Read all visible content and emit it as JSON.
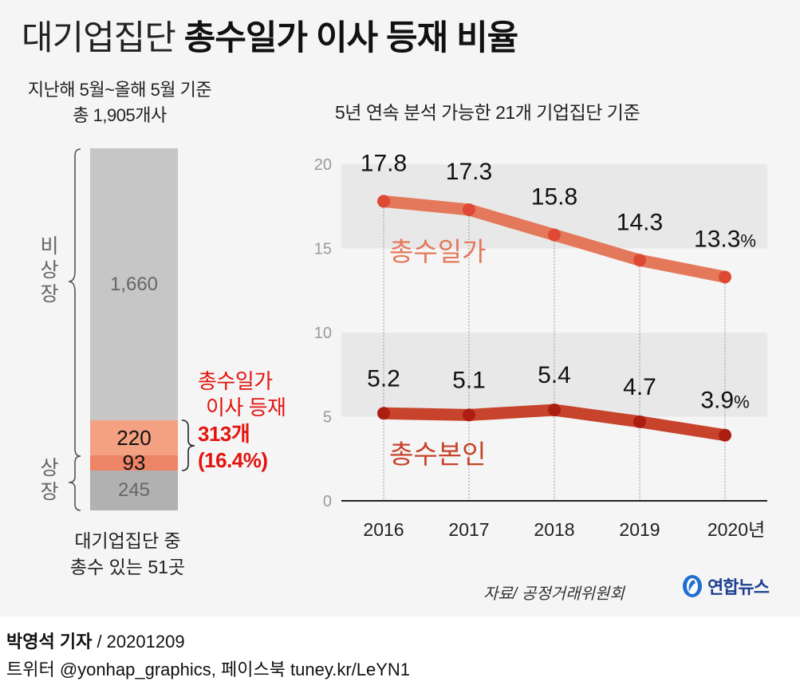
{
  "header": {
    "title_light": "대기업집단",
    "title_bold": "총수일가 이사 등재 비율"
  },
  "left_panel": {
    "subtitle_line1": "지난해 5월~올해 5월 기준",
    "subtitle_line2": "총 1,905개사",
    "group_labels": {
      "non_listed": [
        "비",
        "상",
        "장"
      ],
      "listed": [
        "상",
        "장"
      ]
    },
    "stacked_bar": {
      "segments": [
        {
          "name": "non-listed-other",
          "value": "1,660",
          "color": "#c6c6c6"
        },
        {
          "name": "non-listed-family-director",
          "value": "220",
          "color": "#f3a182"
        },
        {
          "name": "listed-family-director",
          "value": "93",
          "color": "#ee8466"
        },
        {
          "name": "listed-other",
          "value": "245",
          "color": "#b2b1b2"
        }
      ]
    },
    "annotation": {
      "line1": "총수일가",
      "line2": "이사 등재",
      "count": "313개",
      "percent": "(16.4%)",
      "color": "#e3140f"
    },
    "footer_line1": "대기업집단 중",
    "footer_line2": "총수 있는 51곳"
  },
  "right_panel": {
    "subtitle": "5년 연속 분석 가능한 21개 기업집단 기준"
  },
  "chart_data": {
    "type": "line",
    "title": "대기업집단 총수일가 이사 등재 비율",
    "subtitle": "5년 연속 분석 가능한 21개 기업집단 기준",
    "xlabel": "",
    "ylabel": "",
    "x": [
      "2016",
      "2017",
      "2018",
      "2019",
      "2020년"
    ],
    "ylim": [
      0,
      20
    ],
    "yticks": [
      "0",
      "5",
      "10",
      "15",
      "20"
    ],
    "shaded_bands": [
      [
        5,
        10
      ],
      [
        15,
        20
      ]
    ],
    "unit_suffix": "%",
    "series": [
      {
        "name": "총수일가",
        "values": [
          17.8,
          17.3,
          15.8,
          14.3,
          13.3
        ],
        "labels": [
          "17.8",
          "17.3",
          "15.8",
          "14.3",
          "13.3"
        ],
        "line_color": "#e4785a",
        "dot_color": "#dc4430",
        "label_color": "#e4785a"
      },
      {
        "name": "총수본인",
        "values": [
          5.2,
          5.1,
          5.4,
          4.7,
          3.9
        ],
        "labels": [
          "5.2",
          "5.1",
          "5.4",
          "4.7",
          "3.9"
        ],
        "line_color": "#c7432b",
        "dot_color": "#a9190f",
        "label_color": "#c7432b"
      }
    ]
  },
  "source": {
    "text": "자료/ 공정거래위원회",
    "logo_text": "연합뉴스"
  },
  "credits": {
    "reporter": "박영석 기자",
    "date": "/  20201209",
    "social": "트위터 @yonhap_graphics, 페이스북 tuney.kr/LeYN1"
  }
}
